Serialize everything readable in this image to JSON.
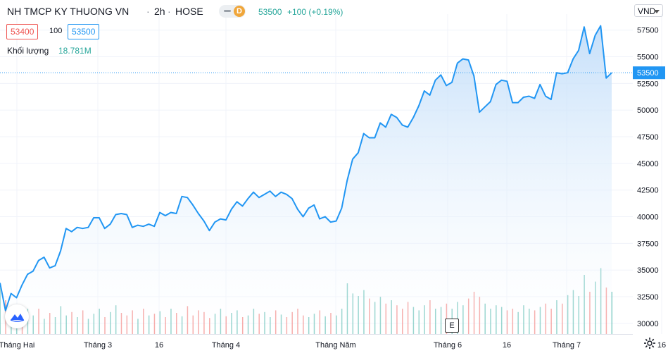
{
  "header": {
    "symbol_title": "NH TMCP KY THUONG VN",
    "interval": "2h",
    "exchange": "HOSE",
    "delay_badge": "D",
    "last_price": "53500",
    "change": "+100 (+0.19%)",
    "bid": "53400",
    "spread": "100",
    "ask": "53500",
    "volume_label": "Khối lượng",
    "volume_value": "18.781M",
    "currency": "VND"
  },
  "colors": {
    "line": "#2196f3",
    "area_top": "#bfdcf9",
    "up_volume": "#26a69a",
    "down_volume": "#ef5350",
    "grid": "#f0f3fa",
    "price_tag": "#2196f3"
  },
  "toolbar": {
    "e_button": "E"
  },
  "chart_data": {
    "type": "area",
    "ylim": [
      29000,
      59000
    ],
    "y_ticks": [
      "57500",
      "55000",
      "52500",
      "50000",
      "47500",
      "45000",
      "42500",
      "40000",
      "37500",
      "35000",
      "32500",
      "30000"
    ],
    "x_ticks": [
      "Tháng Hai",
      "Tháng 3",
      "16",
      "Tháng 4",
      "Tháng Năm",
      "Tháng 6",
      "16",
      "Tháng 7",
      "16"
    ],
    "current_price": 53500,
    "series": [
      {
        "values": [
          33800,
          31200,
          32800,
          32400,
          33600,
          34600,
          34900,
          35900,
          36200,
          35200,
          35400,
          36800,
          38900,
          38600,
          39000,
          38900,
          39000,
          39900,
          39900,
          38900,
          39300,
          40200,
          40300,
          40200,
          39000,
          39200,
          39100,
          39300,
          39100,
          40400,
          40100,
          40400,
          40300,
          41900,
          41800,
          41100,
          40300,
          39600,
          38700,
          39500,
          39800,
          39700,
          40700,
          41400,
          41000,
          41700,
          42300,
          41800,
          42100,
          42400,
          41900,
          42300,
          42100,
          41700,
          40700,
          40000,
          40800,
          41100,
          39800,
          40000,
          39500,
          39600,
          40800,
          43400,
          45400,
          46000,
          47800,
          47400,
          47400,
          48800,
          48400,
          49600,
          49300,
          48600,
          48400,
          49300,
          50400,
          51800,
          51400,
          52800,
          53300,
          52300,
          52600,
          54400,
          54800,
          54700,
          53200,
          49800,
          50300,
          50800,
          52400,
          52800,
          52700,
          50700,
          50700,
          51200,
          51300,
          51100,
          52400,
          51300,
          51000,
          53500,
          53400,
          53500,
          54800,
          55600,
          57800,
          55300,
          57000,
          57900,
          53000,
          53500
        ]
      }
    ],
    "volume": {
      "heights": [
        0.55,
        0.4,
        0.32,
        0.34,
        0.28,
        0.3,
        0.22,
        0.3,
        0.18,
        0.25,
        0.2,
        0.33,
        0.22,
        0.26,
        0.2,
        0.28,
        0.18,
        0.24,
        0.3,
        0.2,
        0.26,
        0.34,
        0.25,
        0.22,
        0.28,
        0.18,
        0.3,
        0.22,
        0.24,
        0.27,
        0.2,
        0.3,
        0.25,
        0.21,
        0.33,
        0.22,
        0.28,
        0.26,
        0.19,
        0.24,
        0.3,
        0.21,
        0.25,
        0.28,
        0.2,
        0.22,
        0.3,
        0.24,
        0.26,
        0.2,
        0.28,
        0.23,
        0.2,
        0.26,
        0.3,
        0.22,
        0.2,
        0.24,
        0.28,
        0.21,
        0.25,
        0.22,
        0.3,
        0.6,
        0.48,
        0.45,
        0.52,
        0.42,
        0.38,
        0.44,
        0.36,
        0.4,
        0.34,
        0.3,
        0.38,
        0.32,
        0.28,
        0.34,
        0.4,
        0.3,
        0.32,
        0.36,
        0.3,
        0.38,
        0.34,
        0.42,
        0.5,
        0.44,
        0.36,
        0.3,
        0.34,
        0.32,
        0.28,
        0.3,
        0.26,
        0.34,
        0.3,
        0.28,
        0.32,
        0.36,
        0.3,
        0.4,
        0.36,
        0.46,
        0.52,
        0.45,
        0.7,
        0.5,
        0.62,
        0.78,
        0.55,
        0.5
      ],
      "up": [
        1,
        0,
        1,
        1,
        0,
        1,
        1,
        0,
        1,
        0,
        1,
        1,
        1,
        0,
        1,
        0,
        1,
        1,
        1,
        0,
        1,
        1,
        0,
        0,
        0,
        1,
        0,
        1,
        0,
        1,
        0,
        1,
        0,
        1,
        0,
        0,
        0,
        0,
        0,
        1,
        1,
        0,
        1,
        1,
        0,
        1,
        1,
        0,
        1,
        1,
        0,
        1,
        0,
        0,
        0,
        0,
        1,
        1,
        0,
        1,
        0,
        1,
        1,
        1,
        1,
        1,
        1,
        0,
        1,
        1,
        0,
        1,
        0,
        0,
        0,
        1,
        1,
        1,
        0,
        1,
        1,
        0,
        1,
        1,
        1,
        0,
        0,
        0,
        1,
        1,
        1,
        1,
        0,
        0,
        1,
        1,
        1,
        0,
        1,
        0,
        0,
        1,
        0,
        1,
        1,
        1,
        1,
        0,
        1,
        1,
        0,
        1
      ]
    }
  }
}
